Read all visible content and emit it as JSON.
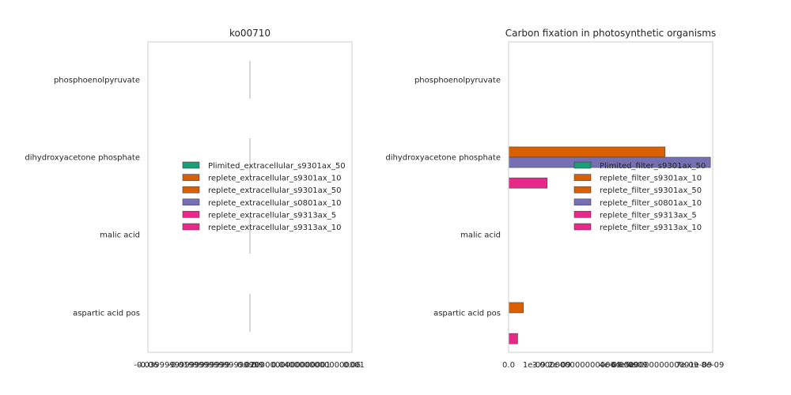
{
  "chart_data": [
    {
      "type": "bar",
      "orientation": "horizontal",
      "title": "ko00710",
      "categories": [
        "phosphoenolpyruvate",
        "dihydroxyacetone phosphate",
        "malic acid",
        "aspartic acid pos"
      ],
      "x_tick_labels": [
        "-0.06",
        "-0.03999999999999999",
        "-0.01999999999999999",
        "0.0",
        "0.02000000000000001",
        "0.04000000000000001",
        "0.06"
      ],
      "xlim": [
        -0.06,
        0.06
      ],
      "grid": false,
      "legend_position": "center-right",
      "series": [
        {
          "name": "Plimited_extracellular_s9301ax_50",
          "color": "#1b9e77",
          "values": [
            0,
            0,
            0,
            0
          ]
        },
        {
          "name": "replete_extracellular_s9301ax_10",
          "color": "#d95f02",
          "values": [
            0,
            0,
            0,
            0
          ]
        },
        {
          "name": "replete_extracellular_s9301ax_50",
          "color": "#d95f02",
          "values": [
            0,
            0,
            0,
            0
          ]
        },
        {
          "name": "replete_extracellular_s0801ax_10",
          "color": "#7570b3",
          "values": [
            0,
            0,
            0,
            0
          ]
        },
        {
          "name": "replete_extracellular_s9313ax_5",
          "color": "#e7298a",
          "values": [
            0,
            0,
            0,
            0
          ]
        },
        {
          "name": "replete_extracellular_s9313ax_10",
          "color": "#e7298a",
          "values": [
            0,
            0,
            0,
            0
          ]
        }
      ]
    },
    {
      "type": "bar",
      "orientation": "horizontal",
      "title": "Carbon fixation in photosynthetic organisms",
      "categories": [
        "phosphoenolpyruvate",
        "dihydroxyacetone phosphate",
        "malic acid",
        "aspartic acid pos"
      ],
      "x_tick_labels": [
        "0.0",
        "1e-09",
        "2e-09",
        "3.0000000000000004e-09",
        "4e-09",
        "5e-09",
        "6.000000000000001e-09",
        "7e-09",
        "8e-09"
      ],
      "xlim": [
        0,
        9e-09
      ],
      "grid": false,
      "legend_position": "center-right",
      "series": [
        {
          "name": "Plimited_filter_s9301ax_50",
          "color": "#1b9e77",
          "values": [
            0,
            0,
            0,
            0
          ]
        },
        {
          "name": "replete_filter_s9301ax_10",
          "color": "#d95f02",
          "values": [
            0,
            0,
            0,
            0
          ]
        },
        {
          "name": "replete_filter_s9301ax_50",
          "color": "#d95f02",
          "values": [
            0,
            6.9e-09,
            0,
            6.5e-10
          ]
        },
        {
          "name": "replete_filter_s0801ax_10",
          "color": "#7570b3",
          "values": [
            0,
            8.9e-09,
            0,
            0
          ]
        },
        {
          "name": "replete_filter_s9313ax_5",
          "color": "#e7298a",
          "values": [
            0,
            0,
            0,
            0
          ]
        },
        {
          "name": "replete_filter_s9313ax_10",
          "color": "#e7298a",
          "values": [
            0,
            1.7e-09,
            0,
            4e-10
          ]
        }
      ]
    }
  ]
}
